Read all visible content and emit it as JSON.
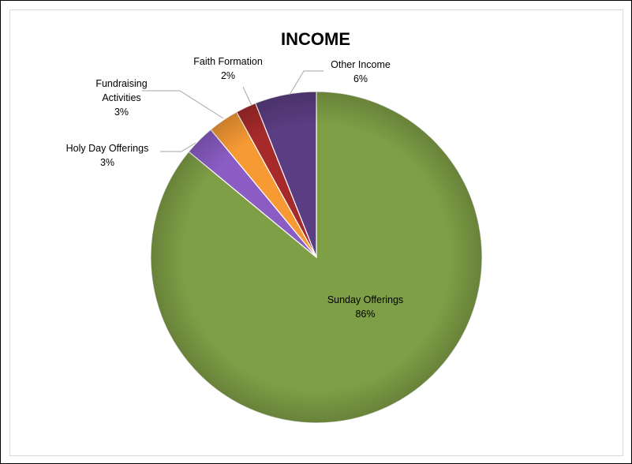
{
  "chart_data": {
    "type": "pie",
    "title": "INCOME",
    "start_angle_deg": 0,
    "direction": "clockwise",
    "slices": [
      {
        "label": "Sunday Offerings",
        "pct_label": "86%",
        "value": 86,
        "color": "#7f9f46"
      },
      {
        "label": "Holy Day Offerings",
        "pct_label": "3%",
        "value": 3,
        "color": "#8a5cc4"
      },
      {
        "label": "Fundraising Activities",
        "label_lines": [
          "Fundraising",
          "Activities"
        ],
        "pct_label": "3%",
        "value": 3,
        "color": "#f79a34"
      },
      {
        "label": "Faith Formation",
        "pct_label": "2%",
        "value": 2,
        "color": "#a62a2a"
      },
      {
        "label": "Other Income",
        "pct_label": "6%",
        "value": 6,
        "color": "#5a3d82"
      }
    ],
    "legend": "none",
    "data_labels": "outside-with-leaders"
  }
}
